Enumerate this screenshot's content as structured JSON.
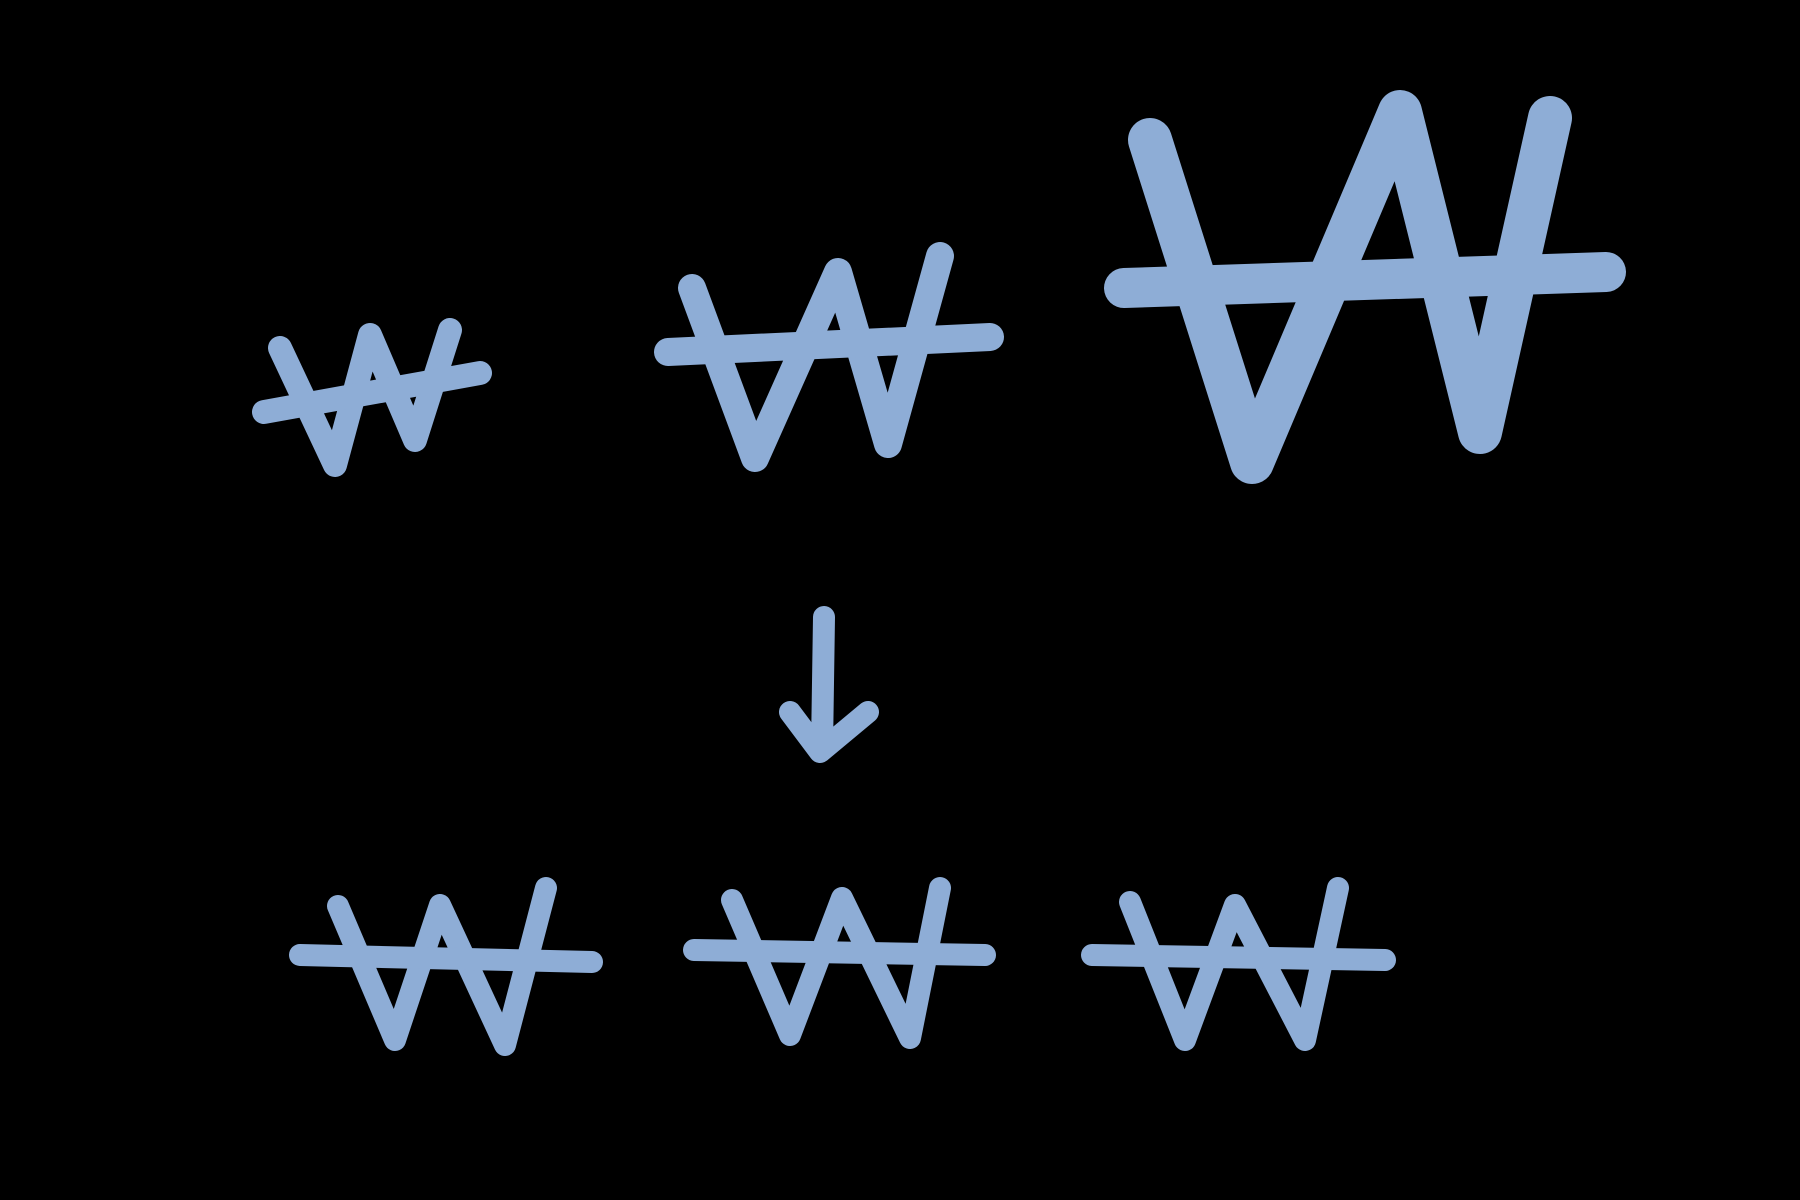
{
  "diagram": {
    "background_color": "#000000",
    "stroke_color": "#8eadd6",
    "top_row": {
      "description_free": true,
      "symbols": [
        {
          "id": "won-small",
          "glyph": "₩",
          "relative_size": "small"
        },
        {
          "id": "won-medium",
          "glyph": "₩",
          "relative_size": "medium"
        },
        {
          "id": "won-large",
          "glyph": "₩",
          "relative_size": "large"
        }
      ]
    },
    "connector": {
      "icon": "arrow-down-icon"
    },
    "bottom_row": {
      "symbols": [
        {
          "id": "won-normalized-1",
          "glyph": "₩",
          "relative_size": "uniform"
        },
        {
          "id": "won-normalized-2",
          "glyph": "₩",
          "relative_size": "uniform"
        },
        {
          "id": "won-normalized-3",
          "glyph": "₩",
          "relative_size": "uniform"
        }
      ]
    }
  }
}
